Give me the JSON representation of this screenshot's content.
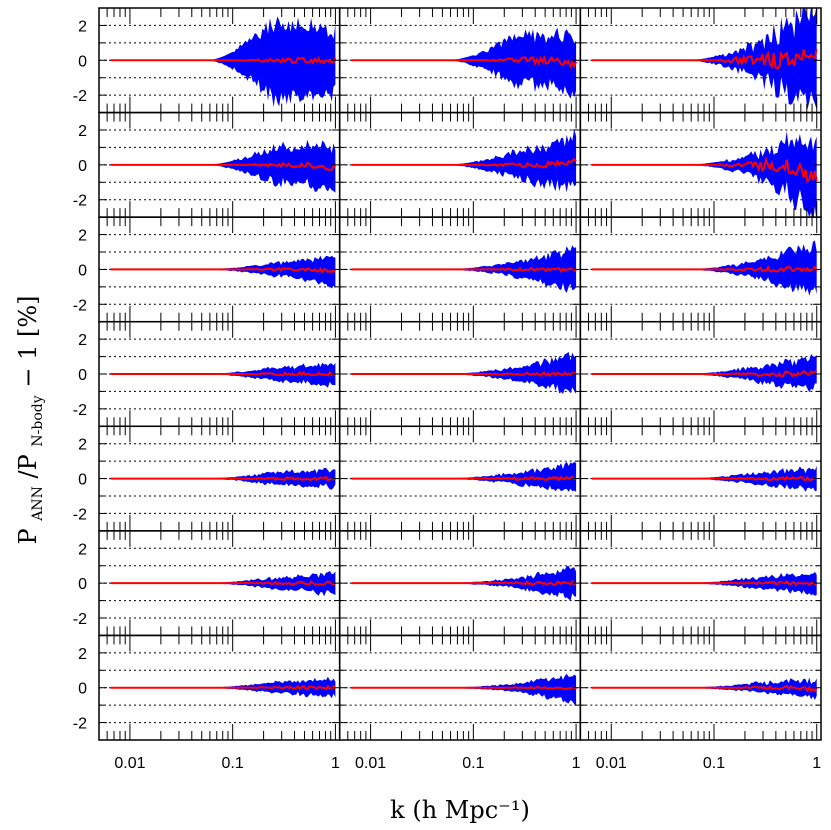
{
  "chart_data": {
    "type": "area",
    "xlabel": "k (h Mpc⁻¹)",
    "ylabel": {
      "base1": "P",
      "sub1": "ANN",
      "mid": "/P",
      "sub2": "N-body",
      "tail": " − 1 [%]"
    },
    "layout": {
      "rows": 7,
      "cols": 3
    },
    "x_scale": "log",
    "xlim": [
      0.005,
      1.1
    ],
    "ylim": [
      -3,
      3
    ],
    "x_ticks": [
      0.01,
      0.1,
      1
    ],
    "x_tick_labels": [
      "0.01",
      "0.1",
      "1"
    ],
    "y_ticks": [
      -2,
      0,
      2
    ],
    "y_tick_labels": [
      "-2",
      "0",
      "2"
    ],
    "reference_lines_y": [
      -2,
      -1,
      0,
      1,
      2
    ],
    "k_start": 0.0065,
    "band_color": "#0000ff",
    "line_color": "#ff0000",
    "band_amplitude_at_k_1": [
      [
        1.8,
        1.6,
        2.8
      ],
      [
        1.2,
        1.5,
        2.3
      ],
      [
        0.8,
        1.2,
        1.4
      ],
      [
        0.6,
        1.1,
        0.9
      ],
      [
        0.5,
        0.8,
        0.6
      ],
      [
        0.6,
        0.9,
        0.6
      ],
      [
        0.5,
        0.8,
        0.5
      ]
    ],
    "band_amplitude_at_k_0_25": [
      [
        2.2,
        1.3,
        0.9
      ],
      [
        1.0,
        0.7,
        0.6
      ],
      [
        0.35,
        0.4,
        0.45
      ],
      [
        0.35,
        0.35,
        0.4
      ],
      [
        0.35,
        0.3,
        0.3
      ],
      [
        0.3,
        0.25,
        0.3
      ],
      [
        0.3,
        0.2,
        0.25
      ]
    ],
    "median_wiggle": [
      [
        0.15,
        0.2,
        0.5
      ],
      [
        0.15,
        0.15,
        0.4
      ],
      [
        0.1,
        0.1,
        0.15
      ],
      [
        0.1,
        0.1,
        0.15
      ],
      [
        0.1,
        0.1,
        0.1
      ],
      [
        0.1,
        0.1,
        0.1
      ],
      [
        0.1,
        0.05,
        0.1
      ]
    ],
    "median_end": [
      [
        0.0,
        -0.2,
        0.5
      ],
      [
        -0.2,
        0.2,
        -0.8
      ],
      [
        -0.1,
        -0.05,
        0.05
      ],
      [
        0.0,
        0.0,
        0.1
      ],
      [
        0.0,
        0.0,
        0.0
      ],
      [
        0.0,
        0.0,
        0.0
      ],
      [
        0.0,
        -0.05,
        -0.1
      ]
    ]
  }
}
